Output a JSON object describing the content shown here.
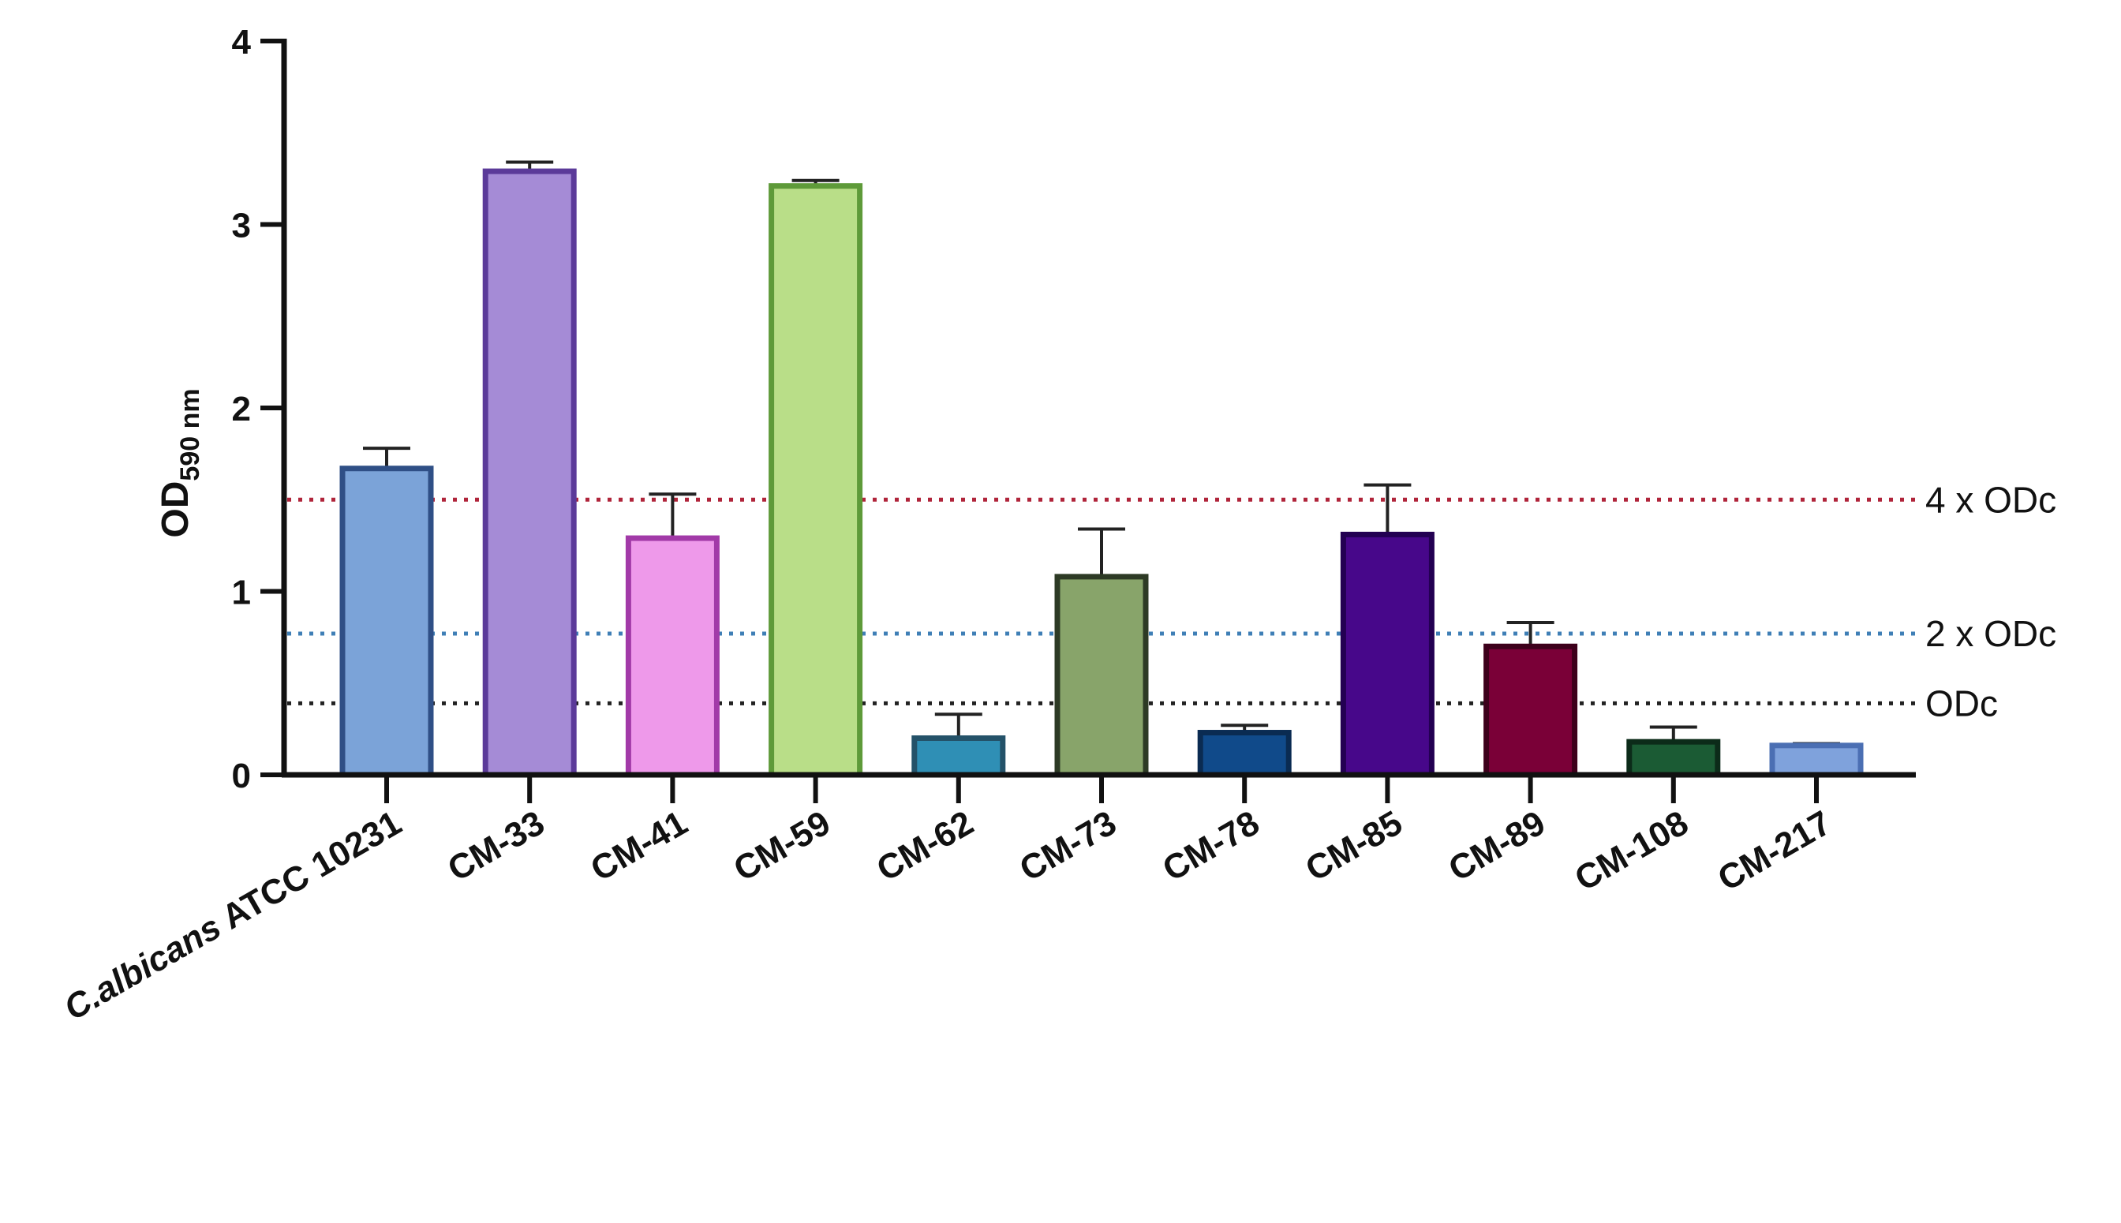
{
  "chart_data": {
    "type": "bar",
    "ylabel": {
      "main": "OD",
      "subscript": "590 nm"
    },
    "ylim": [
      0,
      4
    ],
    "yticks": [
      "0",
      "1",
      "2",
      "3",
      "4"
    ],
    "categories": [
      {
        "label": "ATCC 10231",
        "italic_prefix": "C.albicans",
        "value": 1.67,
        "error": 0.11,
        "fill": "#7ba3d8",
        "stroke": "#2f4f86"
      },
      {
        "label": "CM-33",
        "value": 3.29,
        "error": 0.05,
        "fill": "#a58bd6",
        "stroke": "#5b3a99"
      },
      {
        "label": "CM-41",
        "value": 1.29,
        "error": 0.24,
        "fill": "#ee99ea",
        "stroke": "#a23aa8"
      },
      {
        "label": "CM-59",
        "value": 3.21,
        "error": 0.03,
        "fill": "#b9de88",
        "stroke": "#5e9a39"
      },
      {
        "label": "CM-62",
        "value": 0.2,
        "error": 0.13,
        "fill": "#2f8fb5",
        "stroke": "#245269"
      },
      {
        "label": "CM-73",
        "value": 1.08,
        "error": 0.26,
        "fill": "#88a46a",
        "stroke": "#2d3a25"
      },
      {
        "label": "CM-78",
        "value": 0.23,
        "error": 0.04,
        "fill": "#104a8a",
        "stroke": "#0a2b52"
      },
      {
        "label": "CM-85",
        "value": 1.31,
        "error": 0.27,
        "fill": "#47078a",
        "stroke": "#230052"
      },
      {
        "label": "CM-89",
        "value": 0.7,
        "error": 0.13,
        "fill": "#7a0037",
        "stroke": "#3d001b"
      },
      {
        "label": "CM-108",
        "value": 0.18,
        "error": 0.08,
        "fill": "#1b5b34",
        "stroke": "#0c2b19"
      },
      {
        "label": "CM-217",
        "value": 0.16,
        "error": 0.01,
        "fill": "#7fa2dc",
        "stroke": "#4b6fb3"
      }
    ],
    "reference_lines": [
      {
        "label": "4 x ODc",
        "value": 1.5,
        "color": "#b0243a"
      },
      {
        "label": "2 x ODc",
        "value": 0.77,
        "color": "#3f7fb6"
      },
      {
        "label": "ODc",
        "value": 0.39,
        "color": "#222222"
      }
    ],
    "grid": false,
    "legend": "none"
  }
}
